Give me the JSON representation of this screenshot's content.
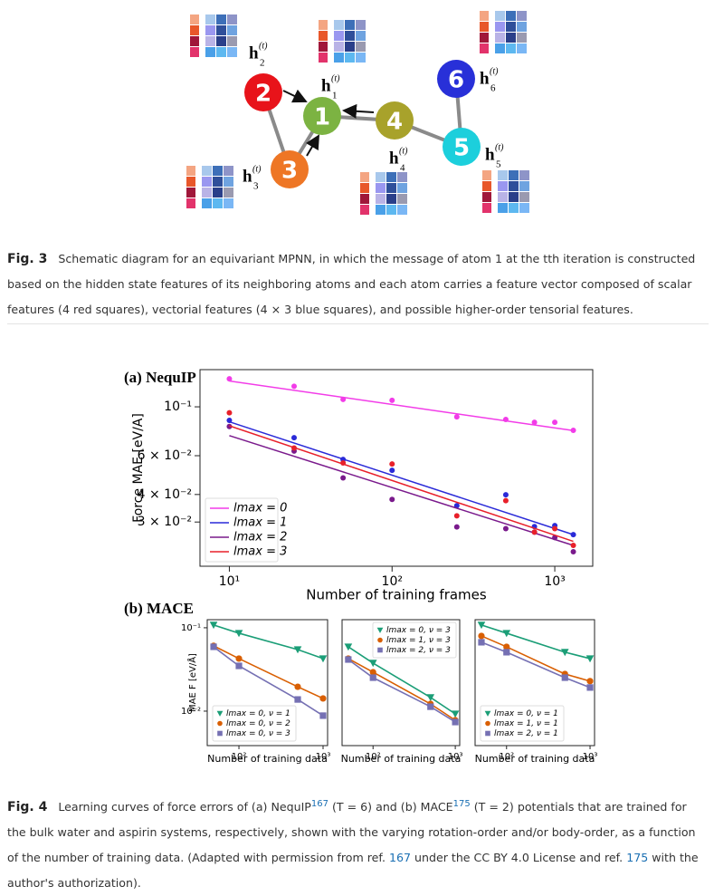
{
  "figure3": {
    "nodes": [
      {
        "label": "1",
        "feature": "h",
        "index": "1",
        "iteration": "(t)"
      },
      {
        "label": "2",
        "feature": "h",
        "index": "2",
        "iteration": "(t)"
      },
      {
        "label": "3",
        "feature": "h",
        "index": "3",
        "iteration": "(t)"
      },
      {
        "label": "4",
        "feature": "h",
        "index": "4",
        "iteration": "(t)"
      },
      {
        "label": "5",
        "feature": "h",
        "index": "5",
        "iteration": "(t)"
      },
      {
        "label": "6",
        "feature": "h",
        "index": "6",
        "iteration": "(t)"
      }
    ],
    "caption": {
      "label": "Fig. 3",
      "text": "Schematic diagram for an equivariant MPNN, in which the message of atom 1 at the tth iteration is constructed based on the hidden state features of its neighboring atoms and each atom carries a feature vector composed of scalar features (4 red squares), vectorial features (4 × 3 blue squares), and possible higher-order tensorial features."
    }
  },
  "figure4": {
    "caption": {
      "label": "Fig. 4",
      "parts": [
        "Learning curves of force errors of (a) NequIP",
        "167",
        " (T = 6) and (b) MACE",
        "175",
        " (T = 2) potentials that are trained for the bulk water and aspirin systems, respectively, shown with the varying rotation-order and/or body-order, as a function of the number of training data. (Adapted with permission from ref. ",
        "167",
        " under the CC BY 4.0 License and ref. ",
        "175",
        " with the author's authorization)."
      ]
    }
  },
  "chart_data": [
    {
      "type": "scatter",
      "title": "(a) NequIP",
      "x_label": "Number of training frames",
      "y_label": "Force MAE [eV/A]",
      "log_x": true,
      "log_y": true,
      "legend": "lower left",
      "marker": "circle",
      "xlim": [
        6.6,
        1711
      ],
      "ylim": [
        0.0189,
        0.1475
      ],
      "xticks": [
        {
          "value": 10,
          "label": "10¹"
        },
        {
          "value": 100,
          "label": "10²"
        },
        {
          "value": 1000,
          "label": "10³"
        }
      ],
      "yticks": [
        {
          "value": 0.1,
          "label": "10⁻¹"
        },
        {
          "value": 0.06,
          "label": "6 × 10⁻²"
        },
        {
          "value": 0.04,
          "label": "4 × 10⁻²"
        },
        {
          "value": 0.03,
          "label": "3 × 10⁻²"
        }
      ],
      "x": [
        10,
        25,
        50,
        100,
        250,
        500,
        750,
        1000,
        1300
      ],
      "fit_x": [
        10,
        1300
      ],
      "series": [
        {
          "name": "lmax = 0",
          "color": "#f23ce8",
          "values": [
            0.134,
            0.124,
            0.108,
            0.107,
            0.09,
            0.0876,
            0.0851,
            0.0851,
            0.0782
          ],
          "fit": [
            0.131,
            0.078
          ]
        },
        {
          "name": "lmax = 1",
          "color": "#2a2ad8",
          "values": [
            0.0868,
            0.0724,
            0.0577,
            0.0515,
            0.0356,
            0.0399,
            0.0286,
            0.0289,
            0.0263
          ],
          "fit": [
            0.0855,
            0.0263
          ]
        },
        {
          "name": "lmax = 2",
          "color": "#7a1a8c",
          "values": [
            0.0814,
            0.063,
            0.0476,
            0.038,
            0.0285,
            0.028,
            0.027,
            0.0255,
            0.022
          ],
          "fit": [
            0.074,
            0.0235
          ]
        },
        {
          "name": "lmax = 3",
          "color": "#e8202a",
          "values": [
            0.094,
            0.065,
            0.0556,
            0.055,
            0.032,
            0.0375,
            0.027,
            0.028,
            0.0235
          ],
          "fit": [
            0.082,
            0.0245
          ]
        }
      ]
    },
    {
      "type": "line",
      "title": "(b) MACE",
      "x_label": "Number of training data",
      "y_label": "MAE F [eV/Å]",
      "log_x": true,
      "log_y": true,
      "legend": "lower left",
      "xlim": [
        42,
        1132
      ],
      "ylim": [
        0.00386,
        0.125
      ],
      "xticks": [
        {
          "value": 100,
          "label": "10²"
        },
        {
          "value": 1000,
          "label": "10³"
        }
      ],
      "yticks": [
        {
          "value": 0.1,
          "label": "10⁻¹"
        },
        {
          "value": 0.01,
          "label": "10⁻²"
        }
      ],
      "x": [
        50,
        100,
        500,
        1000
      ],
      "series": [
        {
          "name": "lmax = 0, ν = 1",
          "color": "#1b9e77",
          "marker": "triangle",
          "values": [
            0.108,
            0.086,
            0.0548,
            0.0427
          ]
        },
        {
          "name": "lmax = 0, ν = 2",
          "color": "#d95f02",
          "marker": "circle",
          "values": [
            0.0607,
            0.0427,
            0.0196,
            0.0142
          ]
        },
        {
          "name": "lmax = 0, ν = 3",
          "color": "#7570b3",
          "marker": "square",
          "values": [
            0.0591,
            0.0349,
            0.0138,
            0.00883
          ]
        }
      ]
    },
    {
      "type": "line",
      "x_label": "Number of training data",
      "log_x": true,
      "log_y": true,
      "legend": "upper right",
      "xlim": [
        42,
        1132
      ],
      "ylim": [
        0.00386,
        0.125
      ],
      "xticks": [
        {
          "value": 100,
          "label": "10²"
        },
        {
          "value": 1000,
          "label": "10³"
        }
      ],
      "x": [
        50,
        100,
        500,
        1000
      ],
      "series": [
        {
          "name": "lmax = 0, ν = 3",
          "color": "#1b9e77",
          "marker": "triangle",
          "values": [
            0.0591,
            0.0377,
            0.0146,
            0.00927
          ]
        },
        {
          "name": "lmax = 1, ν = 3",
          "color": "#d95f02",
          "marker": "circle",
          "values": [
            0.0427,
            0.0293,
            0.0122,
            0.00778
          ]
        },
        {
          "name": "lmax = 2, ν = 3",
          "color": "#7570b3",
          "marker": "square",
          "values": [
            0.0416,
            0.0252,
            0.0113,
            0.0074
          ]
        }
      ]
    },
    {
      "type": "line",
      "x_label": "Number of training data",
      "log_x": true,
      "log_y": true,
      "legend": "lower left",
      "xlim": [
        42,
        1132
      ],
      "ylim": [
        0.00386,
        0.125
      ],
      "xticks": [
        {
          "value": 100,
          "label": "10²"
        },
        {
          "value": 1000,
          "label": "10³"
        }
      ],
      "x": [
        50,
        100,
        500,
        1000
      ],
      "series": [
        {
          "name": "lmax = 0, ν = 1",
          "color": "#1b9e77",
          "marker": "triangle",
          "values": [
            0.108,
            0.086,
            0.0509,
            0.0427
          ]
        },
        {
          "name": "lmax = 1, ν = 1",
          "color": "#d95f02",
          "marker": "circle",
          "values": [
            0.0798,
            0.0591,
            0.0279,
            0.0229
          ]
        },
        {
          "name": "lmax = 2, ν = 1",
          "color": "#7570b3",
          "marker": "square",
          "values": [
            0.067,
            0.0509,
            0.0252,
            0.0192
          ]
        }
      ]
    }
  ]
}
